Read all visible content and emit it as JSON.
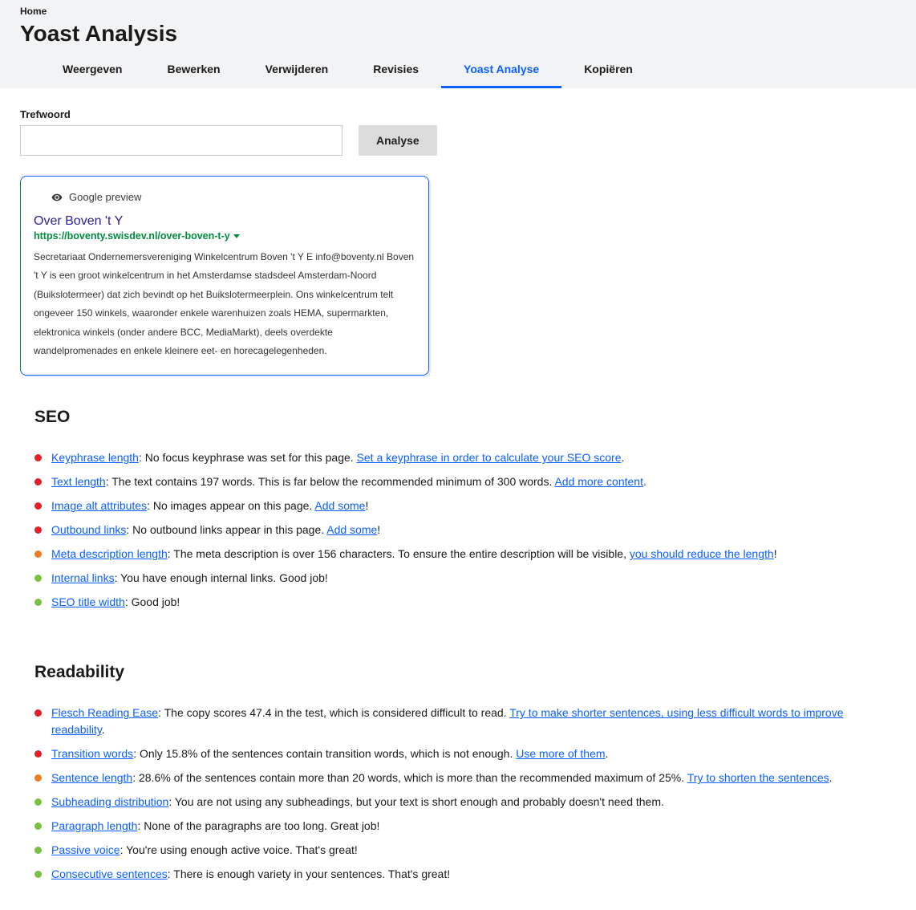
{
  "colors": {
    "status_red": "#e12027",
    "status_orange": "#ee7d22",
    "status_green": "#7ac142",
    "link_blue": "#0b5fff",
    "preview_title": "#2d2093",
    "preview_url": "#008d3e"
  },
  "breadcrumb": {
    "home": "Home"
  },
  "page_title": "Yoast Analysis",
  "tabs": [
    {
      "label": "Weergeven",
      "active": false
    },
    {
      "label": "Bewerken",
      "active": false
    },
    {
      "label": "Verwijderen",
      "active": false
    },
    {
      "label": "Revisies",
      "active": false
    },
    {
      "label": "Yoast Analyse",
      "active": true
    },
    {
      "label": "Kopiëren",
      "active": false
    }
  ],
  "keyword": {
    "label": "Trefwoord",
    "value": "",
    "button": "Analyse"
  },
  "preview": {
    "header": "Google preview",
    "title": "Over Boven 't Y",
    "url": "https://boventy.swisdev.nl/over-boven-t-y",
    "description": "Secretariaat Ondernemersvereniging Winkelcentrum Boven 't Y E info@boventy.nl   Boven 't Y is een groot winkelcentrum in het Amsterdamse stadsdeel Amsterdam-Noord (Buikslotermeer) dat zich bevindt op het Buikslotermeerplein. Ons winkelcentrum telt ongeveer 150 winkels, waaronder enkele warenhuizen zoals HEMA, supermarkten, elektronica winkels (onder andere BCC, MediaMarkt), deels overdekte wandelpromenades en enkele kleinere eet- en horecagelegenheden."
  },
  "seo": {
    "heading": "SEO",
    "items": [
      {
        "status": "status_red",
        "lead": "Keyphrase length",
        "body": ": No focus keyphrase was set for this page. ",
        "action": "Set a keyphrase in order to calculate your SEO score",
        "tail": "."
      },
      {
        "status": "status_red",
        "lead": "Text length",
        "body": ": The text contains 197 words. This is far below the recommended minimum of 300 words. ",
        "action": "Add more content",
        "tail": "."
      },
      {
        "status": "status_red",
        "lead": "Image alt attributes",
        "body": ": No images appear on this page. ",
        "action": "Add some",
        "tail": "!"
      },
      {
        "status": "status_red",
        "lead": "Outbound links",
        "body": ": No outbound links appear in this page. ",
        "action": "Add some",
        "tail": "!"
      },
      {
        "status": "status_orange",
        "lead": "Meta description length",
        "body": ": The meta description is over 156 characters. To ensure the entire description will be visible, ",
        "action": "you should reduce the length",
        "tail": "!"
      },
      {
        "status": "status_green",
        "lead": "Internal links",
        "body": ": You have enough internal links. Good job!",
        "action": "",
        "tail": ""
      },
      {
        "status": "status_green",
        "lead": "SEO title width",
        "body": ": Good job!",
        "action": "",
        "tail": ""
      }
    ]
  },
  "readability": {
    "heading": "Readability",
    "items": [
      {
        "status": "status_red",
        "lead": "Flesch Reading Ease",
        "body": ": The copy scores 47.4 in the test, which is considered difficult to read. ",
        "action": "Try to make shorter sentences, using less difficult words to improve readability",
        "tail": "."
      },
      {
        "status": "status_red",
        "lead": "Transition words",
        "body": ": Only 15.8% of the sentences contain transition words, which is not enough. ",
        "action": "Use more of them",
        "tail": "."
      },
      {
        "status": "status_orange",
        "lead": "Sentence length",
        "body": ": 28.6% of the sentences contain more than 20 words, which is more than the recommended maximum of 25%. ",
        "action": "Try to shorten the sentences",
        "tail": "."
      },
      {
        "status": "status_green",
        "lead": "Subheading distribution",
        "body": ": You are not using any subheadings, but your text is short enough and probably doesn't need them.",
        "action": "",
        "tail": ""
      },
      {
        "status": "status_green",
        "lead": "Paragraph length",
        "body": ": None of the paragraphs are too long. Great job!",
        "action": "",
        "tail": ""
      },
      {
        "status": "status_green",
        "lead": "Passive voice",
        "body": ": You're using enough active voice. That's great!",
        "action": "",
        "tail": ""
      },
      {
        "status": "status_green",
        "lead": "Consecutive sentences",
        "body": ": There is enough variety in your sentences. That's great!",
        "action": "",
        "tail": ""
      }
    ]
  }
}
